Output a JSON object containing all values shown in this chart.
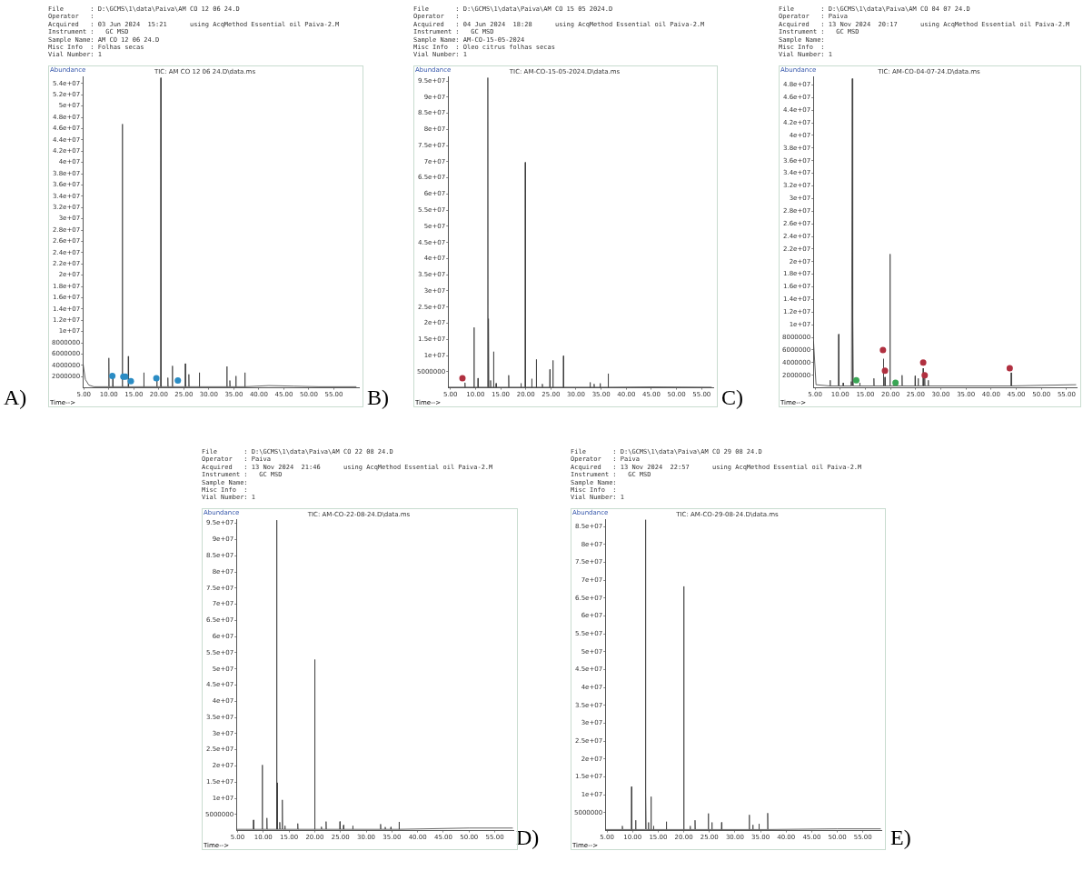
{
  "chart_data": [
    {
      "type": "line",
      "title": "TIC: AM CO 12 06 24.D\\data.ms",
      "subtitle": "A)",
      "xlabel": "Time-->",
      "ylabel": "Abundance",
      "annotations": [
        "File       : D:\\GCMS\\1\\data\\Paiva\\AM CO 12 06 24.D",
        "Operator   :",
        "Acquired   : 03 Jun 2024  15:21      using AcqMethod Essential oil Paiva-2.M",
        "Instrument :   GC MSD",
        "Sample Name: AM CO 12 06 24.D",
        "Misc Info  : Folhas secas",
        "Vial Number: 1"
      ],
      "xlim": [
        4.8,
        60
      ],
      "ylim": [
        0,
        55200000
      ],
      "grid": false,
      "legend": false,
      "xticks": [
        {
          "value": 5,
          "label": "5.00"
        },
        {
          "value": 10,
          "label": "10.00"
        },
        {
          "value": 15,
          "label": "15.00"
        },
        {
          "value": 20,
          "label": "20.00"
        },
        {
          "value": 25,
          "label": "25.00"
        },
        {
          "value": 30,
          "label": "30.00"
        },
        {
          "value": 35,
          "label": "35.00"
        },
        {
          "value": 40,
          "label": "40.00"
        },
        {
          "value": 45,
          "label": "45.00"
        },
        {
          "value": 50,
          "label": "50.00"
        },
        {
          "value": 55,
          "label": "55.00"
        }
      ],
      "yticks": [
        2000000,
        4000000,
        6000000,
        8000000,
        {
          "value": 10000000,
          "label": "1e+07"
        },
        {
          "value": 12000000,
          "label": "1.2e+07"
        },
        {
          "value": 14000000,
          "label": "1.4e+07"
        },
        {
          "value": 16000000,
          "label": "1.6e+07"
        },
        {
          "value": 18000000,
          "label": "1.8e+07"
        },
        {
          "value": 20000000,
          "label": "2e+07"
        },
        {
          "value": 22000000,
          "label": "2.2e+07"
        },
        {
          "value": 24000000,
          "label": "2.4e+07"
        },
        {
          "value": 26000000,
          "label": "2.6e+07"
        },
        {
          "value": 28000000,
          "label": "2.8e+07"
        },
        {
          "value": 30000000,
          "label": "3e+07"
        },
        {
          "value": 32000000,
          "label": "3.2e+07"
        },
        {
          "value": 34000000,
          "label": "3.4e+07"
        },
        {
          "value": 36000000,
          "label": "3.6e+07"
        },
        {
          "value": 38000000,
          "label": "3.8e+07"
        },
        {
          "value": 40000000,
          "label": "4e+07"
        },
        {
          "value": 42000000,
          "label": "4.2e+07"
        },
        {
          "value": 44000000,
          "label": "4.4e+07"
        },
        {
          "value": 46000000,
          "label": "4.6e+07"
        },
        {
          "value": 48000000,
          "label": "4.8e+07"
        },
        {
          "value": 50000000,
          "label": "5e+07"
        },
        {
          "value": 52000000,
          "label": "5.2e+07"
        },
        {
          "value": 54000000,
          "label": "5.4e+07"
        }
      ],
      "series": [
        {
          "type": "line",
          "color": "#3c3c3c",
          "x": [
            4.85,
            5.3,
            6.0,
            7.0,
            9.95,
            10.0,
            10.05,
            10.75,
            10.8,
            10.85,
            12.65,
            12.7,
            12.75,
            13.85,
            13.9,
            13.95,
            16.95,
            17.0,
            17.05,
            19.55,
            19.6,
            19.65,
            20.35,
            20.4,
            20.45,
            21.75,
            21.8,
            21.85,
            22.65,
            22.7,
            22.75,
            25.25,
            25.3,
            25.35,
            25.95,
            26.0,
            26.05,
            28.05,
            28.1,
            28.15,
            33.55,
            33.6,
            33.65,
            34.15,
            34.2,
            34.25,
            35.35,
            35.4,
            35.45,
            37.15,
            37.2,
            37.25,
            42.0,
            47.0,
            52.0,
            59.5
          ],
          "values": [
            4200000,
            1500000,
            500000,
            200000,
            200000,
            5300000,
            200000,
            200000,
            2400000,
            200000,
            200000,
            46800000,
            200000,
            200000,
            5600000,
            200000,
            200000,
            2700000,
            200000,
            200000,
            2100000,
            200000,
            200000,
            55000000,
            200000,
            200000,
            1800000,
            200000,
            200000,
            3900000,
            200000,
            200000,
            4300000,
            200000,
            200000,
            2400000,
            200000,
            200000,
            2700000,
            200000,
            200000,
            3800000,
            200000,
            200000,
            1300000,
            200000,
            200000,
            2100000,
            200000,
            200000,
            2700000,
            200000,
            400000,
            300000,
            200000,
            200000
          ]
        },
        {
          "type": "scatter",
          "color": "#2b8cc4",
          "marker": "circle",
          "x": [
            10.7,
            12.9,
            13.3,
            14.4,
            19.5,
            23.8
          ],
          "values": [
            2100000,
            2000000,
            2000000,
            1200000,
            1700000,
            1300000
          ]
        }
      ]
    },
    {
      "type": "line",
      "title": "TIC: AM-CO-15-05-2024.D\\data.ms",
      "subtitle": "B)",
      "xlabel": "Time-->",
      "ylabel": "Abundance",
      "annotations": [
        "File       : D:\\GCMS\\1\\data\\Paiva\\AM CO 15 05 2024.D",
        "Operator   :",
        "Acquired   : 04 Jun 2024  18:28      using AcqMethod Essential oil Paiva-2.M",
        "Instrument :   GC MSD",
        "Sample Name: AM-CO-15-05-2024",
        "Misc Info  : Oleo citrus folhas secas",
        "Vial Number: 1"
      ],
      "xlim": [
        4.54,
        57.3
      ],
      "ylim": [
        0,
        96300000
      ],
      "grid": false,
      "legend": false,
      "xticks": [
        {
          "value": 5,
          "label": "5.00"
        },
        {
          "value": 10,
          "label": "10.00"
        },
        {
          "value": 15,
          "label": "15.00"
        },
        {
          "value": 20,
          "label": "20.00"
        },
        {
          "value": 25,
          "label": "25.00"
        },
        {
          "value": 30,
          "label": "30.00"
        },
        {
          "value": 35,
          "label": "35.00"
        },
        {
          "value": 40,
          "label": "40.00"
        },
        {
          "value": 45,
          "label": "45.00"
        },
        {
          "value": 50,
          "label": "50.00"
        },
        {
          "value": 55,
          "label": "55.00"
        }
      ],
      "yticks": [
        5000000,
        {
          "value": 10000000,
          "label": "1e+07"
        },
        {
          "value": 15000000,
          "label": "1.5e+07"
        },
        {
          "value": 20000000,
          "label": "2e+07"
        },
        {
          "value": 25000000,
          "label": "2.5e+07"
        },
        {
          "value": 30000000,
          "label": "3e+07"
        },
        {
          "value": 35000000,
          "label": "3.5e+07"
        },
        {
          "value": 40000000,
          "label": "4e+07"
        },
        {
          "value": 45000000,
          "label": "4.5e+07"
        },
        {
          "value": 50000000,
          "label": "5e+07"
        },
        {
          "value": 55000000,
          "label": "5.5e+07"
        },
        {
          "value": 60000000,
          "label": "6e+07"
        },
        {
          "value": 65000000,
          "label": "6.5e+07"
        },
        {
          "value": 70000000,
          "label": "7e+07"
        },
        {
          "value": 75000000,
          "label": "7.5e+07"
        },
        {
          "value": 80000000,
          "label": "8e+07"
        },
        {
          "value": 85000000,
          "label": "8.5e+07"
        },
        {
          "value": 90000000,
          "label": "9e+07"
        },
        {
          "value": 95000000,
          "label": "9.5e+07"
        }
      ],
      "series": [
        {
          "type": "line",
          "color": "#3c3c3c",
          "x": [
            4.6,
            7.85,
            7.9,
            7.95,
            9.65,
            9.7,
            9.75,
            10.45,
            10.5,
            10.55,
            12.4,
            12.45,
            12.5,
            12.55,
            12.6,
            12.65,
            12.95,
            13.0,
            13.05,
            13.55,
            13.6,
            13.65,
            14.05,
            14.1,
            14.15,
            16.55,
            16.6,
            16.65,
            19.0,
            19.05,
            19.1,
            19.85,
            19.9,
            19.95,
            21.15,
            21.2,
            21.25,
            22.05,
            22.1,
            22.15,
            23.25,
            23.3,
            23.35,
            24.75,
            24.8,
            24.85,
            25.35,
            25.4,
            25.45,
            27.45,
            27.5,
            27.55,
            32.75,
            32.8,
            32.85,
            33.55,
            33.6,
            33.65,
            34.75,
            34.8,
            34.85,
            36.35,
            36.4,
            36.45,
            45.0,
            57.0
          ],
          "values": [
            200000,
            200000,
            1600000,
            200000,
            200000,
            18700000,
            200000,
            200000,
            3000000,
            200000,
            200000,
            96000000,
            200000,
            200000,
            21400000,
            200000,
            200000,
            2300000,
            200000,
            200000,
            11200000,
            200000,
            200000,
            1400000,
            200000,
            200000,
            3900000,
            200000,
            200000,
            1400000,
            200000,
            200000,
            69800000,
            200000,
            200000,
            2800000,
            200000,
            200000,
            8800000,
            200000,
            200000,
            1200000,
            200000,
            200000,
            5700000,
            200000,
            200000,
            8500000,
            200000,
            200000,
            9900000,
            200000,
            200000,
            1700000,
            200000,
            200000,
            1200000,
            200000,
            200000,
            1400000,
            200000,
            200000,
            4400000,
            200000,
            300000,
            200000
          ]
        },
        {
          "type": "scatter",
          "color": "#b03040",
          "marker": "circle",
          "x": [
            7.4
          ],
          "values": [
            3000000
          ]
        }
      ]
    },
    {
      "type": "line",
      "title": "TIC: AM-CO-04-07-24.D\\data.ms",
      "subtitle": "C)",
      "xlabel": "Time-->",
      "ylabel": "Abundance",
      "annotations": [
        "File       : D:\\GCMS\\1\\data\\Paiva\\AM CO 04 07 24.D",
        "Operator   : Paiva",
        "Acquired   : 13 Nov 2024  20:17      using AcqMethod Essential oil Paiva-2.M",
        "Instrument :   GC MSD",
        "Sample Name:",
        "Misc Info  :",
        "Vial Number: 1"
      ],
      "xlim": [
        4.66,
        57
      ],
      "ylim": [
        0,
        49300000
      ],
      "grid": false,
      "legend": false,
      "xticks": [
        {
          "value": 5,
          "label": "5.00"
        },
        {
          "value": 10,
          "label": "10.00"
        },
        {
          "value": 15,
          "label": "15.00"
        },
        {
          "value": 20,
          "label": "20.00"
        },
        {
          "value": 25,
          "label": "25.00"
        },
        {
          "value": 30,
          "label": "30.00"
        },
        {
          "value": 35,
          "label": "35.00"
        },
        {
          "value": 40,
          "label": "40.00"
        },
        {
          "value": 45,
          "label": "45.00"
        },
        {
          "value": 50,
          "label": "50.00"
        },
        {
          "value": 55,
          "label": "55.00"
        }
      ],
      "yticks": [
        2000000,
        4000000,
        6000000,
        8000000,
        {
          "value": 10000000,
          "label": "1e+07"
        },
        {
          "value": 12000000,
          "label": "1.2e+07"
        },
        {
          "value": 14000000,
          "label": "1.4e+07"
        },
        {
          "value": 16000000,
          "label": "1.6e+07"
        },
        {
          "value": 18000000,
          "label": "1.8e+07"
        },
        {
          "value": 20000000,
          "label": "2e+07"
        },
        {
          "value": 22000000,
          "label": "2.2e+07"
        },
        {
          "value": 24000000,
          "label": "2.4e+07"
        },
        {
          "value": 26000000,
          "label": "2.6e+07"
        },
        {
          "value": 28000000,
          "label": "2.8e+07"
        },
        {
          "value": 30000000,
          "label": "3e+07"
        },
        {
          "value": 32000000,
          "label": "3.2e+07"
        },
        {
          "value": 34000000,
          "label": "3.4e+07"
        },
        {
          "value": 36000000,
          "label": "3.6e+07"
        },
        {
          "value": 38000000,
          "label": "3.8e+07"
        },
        {
          "value": 40000000,
          "label": "4e+07"
        },
        {
          "value": 42000000,
          "label": "4.2e+07"
        },
        {
          "value": 44000000,
          "label": "4.4e+07"
        },
        {
          "value": 46000000,
          "label": "4.6e+07"
        },
        {
          "value": 48000000,
          "label": "4.8e+07"
        }
      ],
      "series": [
        {
          "type": "line",
          "color": "#3c3c3c",
          "x": [
            4.7,
            5.2,
            7.95,
            8.0,
            8.05,
            9.65,
            9.7,
            9.75,
            10.55,
            10.6,
            10.65,
            12.15,
            12.2,
            12.25,
            12.35,
            12.4,
            12.45,
            12.5,
            12.55,
            12.6,
            13.85,
            13.9,
            13.95,
            16.65,
            16.7,
            16.75,
            18.55,
            18.6,
            18.65,
            18.85,
            18.9,
            18.95,
            19.85,
            19.9,
            19.95,
            22.25,
            22.3,
            22.35,
            24.85,
            24.9,
            24.95,
            25.45,
            25.5,
            25.55,
            26.45,
            26.5,
            26.55,
            26.75,
            26.8,
            26.85,
            27.45,
            27.5,
            27.55,
            43.95,
            44.0,
            44.05,
            50.0,
            56.9
          ],
          "values": [
            7400000,
            500000,
            300000,
            1200000,
            300000,
            300000,
            8500000,
            300000,
            300000,
            800000,
            300000,
            300000,
            1000000,
            300000,
            300000,
            49000000,
            300000,
            300000,
            11200000,
            300000,
            300000,
            800000,
            300000,
            300000,
            1500000,
            300000,
            300000,
            4600000,
            300000,
            300000,
            1700000,
            300000,
            300000,
            21200000,
            300000,
            300000,
            2000000,
            300000,
            300000,
            1900000,
            300000,
            300000,
            1500000,
            300000,
            300000,
            3100000,
            300000,
            300000,
            2000000,
            300000,
            300000,
            1200000,
            300000,
            300000,
            2400000,
            300000,
            400000,
            500000
          ]
        },
        {
          "type": "scatter",
          "color": "#b03040",
          "marker": "circle",
          "x": [
            18.5,
            18.9,
            26.5,
            26.8,
            43.7
          ],
          "values": [
            6000000,
            2700000,
            4000000,
            2000000,
            3100000
          ]
        },
        {
          "type": "scatter",
          "color": "#3aa655",
          "marker": "circle",
          "x": [
            13.2,
            21.0
          ],
          "values": [
            1200000,
            800000
          ]
        }
      ]
    },
    {
      "type": "line",
      "title": "TIC: AM-CO-22-08-24.D\\data.ms",
      "subtitle": "D)",
      "xlabel": "Time-->",
      "ylabel": "Abundance",
      "annotations": [
        "File       : D:\\GCMS\\1\\data\\Paiva\\AM CO 22 08 24.D",
        "Operator   : Paiva",
        "Acquired   : 13 Nov 2024  21:46      using AcqMethod Essential oil Paiva-2.M",
        "Instrument :   GC MSD",
        "Sample Name:",
        "Misc Info  :",
        "Vial Number: 1"
      ],
      "xlim": [
        4.77,
        58.6
      ],
      "ylim": [
        0,
        96200000
      ],
      "grid": false,
      "legend": false,
      "xticks": [
        {
          "value": 5,
          "label": "5.00"
        },
        {
          "value": 10,
          "label": "10.00"
        },
        {
          "value": 15,
          "label": "15.00"
        },
        {
          "value": 20,
          "label": "20.00"
        },
        {
          "value": 25,
          "label": "25.00"
        },
        {
          "value": 30,
          "label": "30.00"
        },
        {
          "value": 35,
          "label": "35.00"
        },
        {
          "value": 40,
          "label": "40.00"
        },
        {
          "value": 45,
          "label": "45.00"
        },
        {
          "value": 50,
          "label": "50.00"
        },
        {
          "value": 55,
          "label": "55.00"
        }
      ],
      "yticks": [
        5000000,
        {
          "value": 10000000,
          "label": "1e+07"
        },
        {
          "value": 15000000,
          "label": "1.5e+07"
        },
        {
          "value": 20000000,
          "label": "2e+07"
        },
        {
          "value": 25000000,
          "label": "2.5e+07"
        },
        {
          "value": 30000000,
          "label": "3e+07"
        },
        {
          "value": 35000000,
          "label": "3.5e+07"
        },
        {
          "value": 40000000,
          "label": "4e+07"
        },
        {
          "value": 45000000,
          "label": "4.5e+07"
        },
        {
          "value": 50000000,
          "label": "5e+07"
        },
        {
          "value": 55000000,
          "label": "5.5e+07"
        },
        {
          "value": 60000000,
          "label": "6e+07"
        },
        {
          "value": 65000000,
          "label": "6.5e+07"
        },
        {
          "value": 70000000,
          "label": "7e+07"
        },
        {
          "value": 75000000,
          "label": "7.5e+07"
        },
        {
          "value": 80000000,
          "label": "8e+07"
        },
        {
          "value": 85000000,
          "label": "8.5e+07"
        },
        {
          "value": 90000000,
          "label": "9e+07"
        },
        {
          "value": 95000000,
          "label": "9.5e+07"
        }
      ],
      "series": [
        {
          "type": "line",
          "color": "#3c3c3c",
          "x": [
            4.8,
            8.05,
            8.1,
            8.15,
            9.75,
            9.8,
            9.85,
            10.65,
            10.7,
            10.75,
            12.55,
            12.6,
            12.65,
            12.7,
            12.75,
            13.15,
            13.2,
            13.25,
            13.65,
            13.7,
            13.75,
            14.15,
            14.2,
            14.25,
            16.65,
            16.7,
            16.75,
            19.95,
            20.0,
            20.05,
            21.25,
            21.3,
            21.35,
            22.15,
            22.2,
            22.25,
            24.85,
            24.9,
            24.95,
            25.55,
            25.6,
            25.65,
            27.35,
            27.4,
            27.45,
            32.75,
            32.8,
            32.85,
            33.65,
            33.7,
            33.75,
            34.75,
            34.8,
            34.85,
            36.35,
            36.4,
            36.45,
            50.0,
            58.5
          ],
          "values": [
            400000,
            400000,
            3300000,
            400000,
            400000,
            20300000,
            400000,
            400000,
            3900000,
            400000,
            400000,
            96000000,
            400000,
            14800000,
            400000,
            400000,
            2600000,
            400000,
            400000,
            9500000,
            400000,
            400000,
            1500000,
            400000,
            400000,
            2200000,
            400000,
            400000,
            52900000,
            400000,
            400000,
            1200000,
            400000,
            400000,
            2800000,
            400000,
            400000,
            2800000,
            400000,
            400000,
            1700000,
            400000,
            400000,
            1500000,
            400000,
            400000,
            2000000,
            400000,
            400000,
            1100000,
            400000,
            400000,
            1100000,
            400000,
            400000,
            2700000,
            400000,
            800000,
            800000
          ]
        }
      ]
    },
    {
      "type": "line",
      "title": "TIC: AM-CO-29-08-24.D\\data.ms",
      "subtitle": "E)",
      "xlabel": "Time-->",
      "ylabel": "Abundance",
      "annotations": [
        "File       : D:\\GCMS\\1\\data\\Paiva\\AM CO 29 08 24.D",
        "Operator   : Paiva",
        "Acquired   : 13 Nov 2024  22:57      using AcqMethod Essential oil Paiva-2.M",
        "Instrument :   GC MSD",
        "Sample Name:",
        "Misc Info  :",
        "Vial Number: 1"
      ],
      "xlim": [
        4.66,
        58.6
      ],
      "ylim": [
        0,
        87000000
      ],
      "grid": false,
      "legend": false,
      "xticks": [
        {
          "value": 5,
          "label": "5.00"
        },
        {
          "value": 10,
          "label": "10.00"
        },
        {
          "value": 15,
          "label": "15.00"
        },
        {
          "value": 20,
          "label": "20.00"
        },
        {
          "value": 25,
          "label": "25.00"
        },
        {
          "value": 30,
          "label": "30.00"
        },
        {
          "value": 35,
          "label": "35.00"
        },
        {
          "value": 40,
          "label": "40.00"
        },
        {
          "value": 45,
          "label": "45.00"
        },
        {
          "value": 50,
          "label": "50.00"
        },
        {
          "value": 55,
          "label": "55.00"
        }
      ],
      "yticks": [
        5000000,
        {
          "value": 10000000,
          "label": "1e+07"
        },
        {
          "value": 15000000,
          "label": "1.5e+07"
        },
        {
          "value": 20000000,
          "label": "2e+07"
        },
        {
          "value": 25000000,
          "label": "2.5e+07"
        },
        {
          "value": 30000000,
          "label": "3e+07"
        },
        {
          "value": 35000000,
          "label": "3.5e+07"
        },
        {
          "value": 40000000,
          "label": "4e+07"
        },
        {
          "value": 45000000,
          "label": "4.5e+07"
        },
        {
          "value": 50000000,
          "label": "5e+07"
        },
        {
          "value": 55000000,
          "label": "5.5e+07"
        },
        {
          "value": 60000000,
          "label": "6e+07"
        },
        {
          "value": 65000000,
          "label": "6.5e+07"
        },
        {
          "value": 70000000,
          "label": "7e+07"
        },
        {
          "value": 75000000,
          "label": "7.5e+07"
        },
        {
          "value": 80000000,
          "label": "8e+07"
        },
        {
          "value": 85000000,
          "label": "8.5e+07"
        }
      ],
      "series": [
        {
          "type": "line",
          "color": "#3c3c3c",
          "x": [
            4.7,
            7.95,
            8.0,
            8.05,
            9.75,
            9.8,
            9.85,
            10.55,
            10.6,
            10.65,
            12.45,
            12.5,
            12.55,
            12.6,
            12.65,
            13.05,
            13.1,
            13.15,
            13.55,
            13.6,
            13.65,
            14.05,
            14.1,
            14.15,
            16.55,
            16.6,
            16.65,
            19.95,
            20.0,
            20.05,
            21.2,
            21.25,
            21.3,
            22.15,
            22.2,
            22.25,
            24.75,
            24.8,
            24.85,
            25.45,
            25.5,
            25.55,
            27.35,
            27.4,
            27.45,
            32.75,
            32.8,
            32.85,
            33.45,
            33.5,
            33.55,
            34.65,
            34.7,
            34.75,
            36.35,
            36.4,
            36.45,
            50.0,
            58.5
          ],
          "values": [
            300000,
            300000,
            1300000,
            300000,
            300000,
            12300000,
            300000,
            300000,
            2900000,
            300000,
            300000,
            87000000,
            300000,
            10500000,
            300000,
            300000,
            2300000,
            300000,
            300000,
            9500000,
            300000,
            300000,
            1300000,
            300000,
            300000,
            2500000,
            300000,
            300000,
            68300000,
            300000,
            300000,
            1300000,
            300000,
            300000,
            2900000,
            300000,
            300000,
            4800000,
            300000,
            300000,
            2300000,
            300000,
            300000,
            2300000,
            300000,
            300000,
            4400000,
            300000,
            300000,
            1600000,
            300000,
            300000,
            1900000,
            300000,
            300000,
            4900000,
            300000,
            500000,
            500000
          ]
        }
      ]
    }
  ]
}
